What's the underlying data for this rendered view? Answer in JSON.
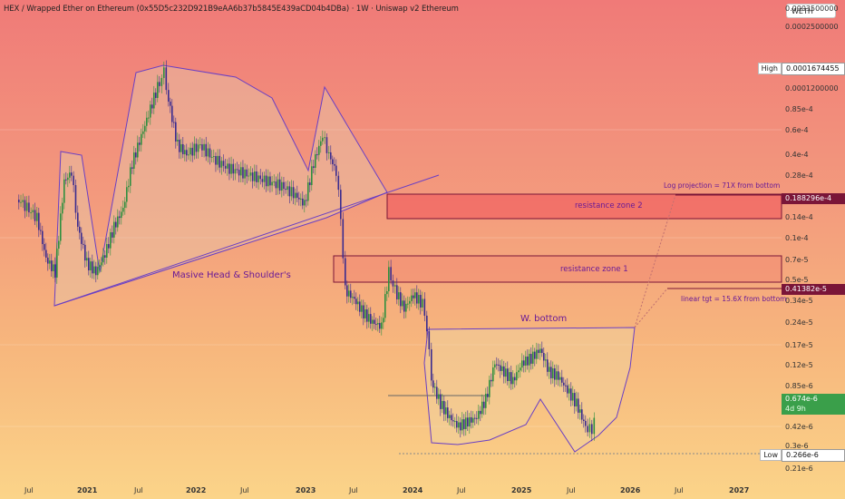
{
  "header": {
    "title": "HEX / Wrapped Ether on Ethereum (0x55D5c232D921B9eAA6b37b5845E439aCD04b4DBa) · 1W · Uniswap v2 Ethereum",
    "symbol": "WETH"
  },
  "price_axis": {
    "labels": [
      "0.0003500000",
      "0.0002500000",
      "0.0001200000",
      "0.85e-4",
      "0.6e-4",
      "0.4e-4",
      "0.28e-4",
      "0.14e-4",
      "0.1e-4",
      "0.7e-5",
      "0.5e-5",
      "0.34e-5",
      "0.24e-5",
      "0.17e-5",
      "0.12e-5",
      "0.85e-6",
      "0.42e-6",
      "0.3e-6",
      "0.21e-6"
    ],
    "high": {
      "label": "High",
      "value": "0.0001674455"
    },
    "low": {
      "label": "Low",
      "value": "0.266e-6"
    },
    "tag_upper": "0.188296e-4",
    "tag_lower": "0.41382e-5",
    "current_price": "0.674e-6",
    "countdown": "4d 9h"
  },
  "time_axis": [
    "Jul",
    "2021",
    "Jul",
    "2022",
    "Jul",
    "2023",
    "Jul",
    "2024",
    "Jul",
    "2025",
    "Jul",
    "2026",
    "Jul",
    "2027"
  ],
  "annotations": {
    "head_shoulders": "Masive Head & Shoulder's",
    "resistance2": "resistance zone 2",
    "resistance1": "resistance zone 1",
    "w_bottom": "W. bottom",
    "log_projection": "Log projection = 71X from bottom",
    "linear_target": "linear tgt = 15.6X from bottom"
  },
  "colors": {
    "up_candle": "#2e8f3e",
    "down_candle": "#3a2b8f",
    "pattern_stroke": "#6a3fc4",
    "zone_stroke": "#7a1538",
    "annotation_text": "#6a1a96"
  }
}
